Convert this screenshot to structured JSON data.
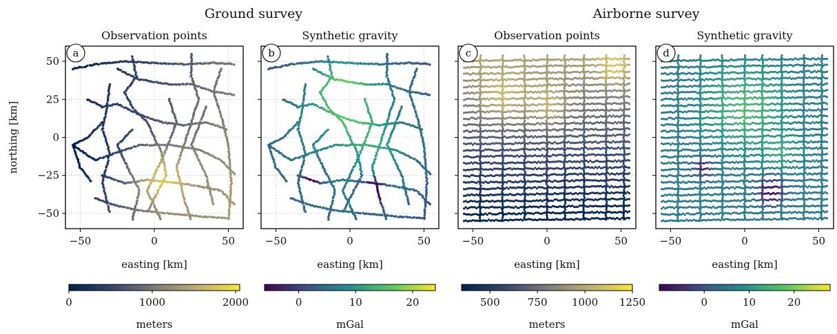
{
  "figure": {
    "group_titles": [
      "Ground survey",
      "Airborne survey"
    ]
  },
  "chart_data": [
    {
      "type": "scatter",
      "panel_label": "a",
      "title": "Observation points",
      "xlabel": "easting [km]",
      "ylabel": "northing [km]",
      "xlim": [
        -60,
        60
      ],
      "ylim": [
        -60,
        60
      ],
      "xticks": [
        -50,
        0,
        50
      ],
      "yticks": [
        50,
        25,
        0,
        -25,
        -50
      ],
      "grid": true,
      "colorbar": {
        "label": "meters",
        "range": [
          0,
          2050
        ],
        "ticks": [
          0,
          1000,
          2000
        ],
        "colormap": "cividis"
      },
      "data_description": "Ground stations along roads; elevation increasing toward the southeast (~1500-2000 m) and lower toward the southwest (~0-300 m)."
    },
    {
      "type": "scatter",
      "panel_label": "b",
      "title": "Synthetic gravity",
      "xlabel": "easting [km]",
      "ylabel": "",
      "xlim": [
        -60,
        60
      ],
      "ylim": [
        -60,
        60
      ],
      "xticks": [
        -50,
        0,
        50
      ],
      "yticks": [
        50,
        25,
        0,
        -25,
        -50
      ],
      "grid": true,
      "colorbar": {
        "label": "mGal",
        "range": [
          -6,
          24
        ],
        "ticks": [
          0,
          10,
          20
        ],
        "colormap": "viridis"
      },
      "data_description": "Same ground stations colored by synthetic gravity; highs (~20 mGal) near the north-center, lows (~-5 mGal) near (15,-35) and (-25,-25)."
    },
    {
      "type": "scatter",
      "panel_label": "c",
      "title": "Observation points",
      "xlabel": "easting [km]",
      "ylabel": "",
      "xlim": [
        -60,
        60
      ],
      "ylim": [
        -60,
        60
      ],
      "xticks": [
        -50,
        0,
        50
      ],
      "yticks": [
        50,
        25,
        0,
        -25,
        -50
      ],
      "grid": true,
      "colorbar": {
        "label": "meters",
        "range": [
          350,
          1250
        ],
        "ticks": [
          500,
          750,
          1000,
          1250
        ],
        "colormap": "cividis"
      },
      "data_description": "Airborne flight lines (east-west lines with north-south tie lines); flight height ~400-1200 m, higher in the north."
    },
    {
      "type": "scatter",
      "panel_label": "d",
      "title": "Synthetic gravity",
      "xlabel": "easting [km]",
      "ylabel": "",
      "xlim": [
        -60,
        60
      ],
      "ylim": [
        -60,
        60
      ],
      "xticks": [
        -50,
        0,
        50
      ],
      "yticks": [
        50,
        25,
        0,
        -25,
        -50
      ],
      "grid": true,
      "colorbar": {
        "label": "mGal",
        "range": [
          -10,
          28
        ],
        "ticks": [
          0,
          10,
          20
        ],
        "colormap": "viridis"
      },
      "data_description": "Airborne gravity along flight lines; broad high ~18 mGal in the center-north, low ~-8 mGal near (15,-35)."
    }
  ]
}
